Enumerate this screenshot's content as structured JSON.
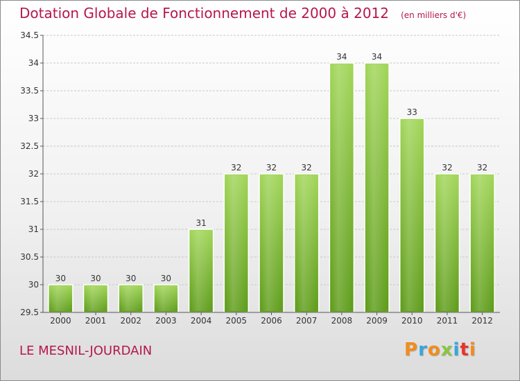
{
  "header": {
    "title": "Dotation Globale de Fonctionnement de 2000 à 2012",
    "unit": "(en milliers d'€)"
  },
  "footer": {
    "commune": "LE MESNIL-JOURDAIN",
    "brand": "Proxiti",
    "brand_colors": [
      "#f28c1b",
      "#35a7dd",
      "#f28c1b",
      "#8cc63f",
      "#35a7dd",
      "#e4362c",
      "#f28c1b"
    ]
  },
  "colors": {
    "title": "#b5164e",
    "bar_top": "#a2d65a",
    "bar_bottom": "#5e9c1a",
    "grid": "#c8c8c8",
    "axis": "#555555"
  },
  "chart_data": {
    "type": "bar",
    "title": "Dotation Globale de Fonctionnement de 2000 à 2012",
    "subtitle": "(en milliers d'€)",
    "categories": [
      "2000",
      "2001",
      "2002",
      "2003",
      "2004",
      "2005",
      "2006",
      "2007",
      "2008",
      "2009",
      "2010",
      "2011",
      "2012"
    ],
    "values": [
      30,
      30,
      30,
      30,
      31,
      32,
      32,
      32,
      34,
      34,
      33,
      32,
      32
    ],
    "ylim": [
      29.5,
      34.5
    ],
    "yticks": [
      "29.5",
      "30",
      "30.5",
      "31",
      "31.5",
      "32",
      "32.5",
      "33",
      "33.5",
      "34",
      "34.5"
    ],
    "xlabel": "",
    "ylabel": "",
    "grid": true,
    "legend": "none"
  }
}
